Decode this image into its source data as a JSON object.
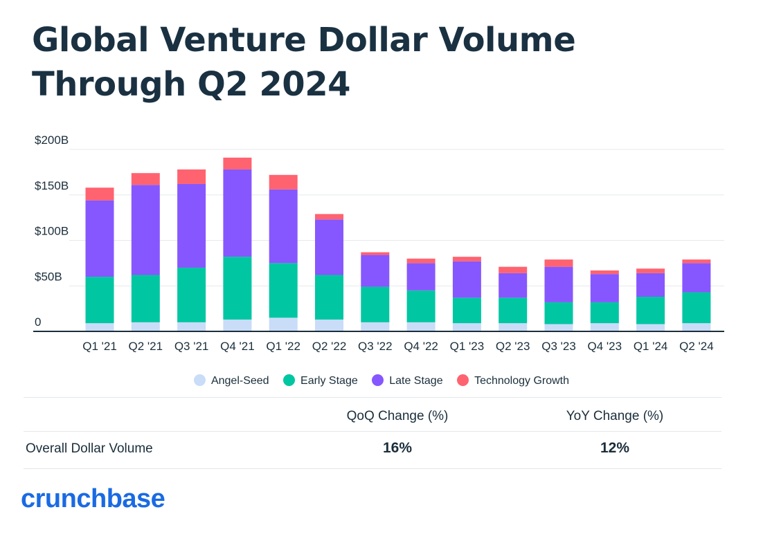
{
  "title": "Global Venture Dollar Volume Through Q2 2024",
  "colors": {
    "angel_seed": "#c9dcf8",
    "early_stage": "#00c6a2",
    "late_stage": "#8657ff",
    "technology_growth": "#ff6370",
    "brand": "#1a6ae3"
  },
  "chart_data": {
    "type": "bar",
    "stacked": true,
    "categories": [
      "Q1 '21",
      "Q2 '21",
      "Q3 '21",
      "Q4 '21",
      "Q1 '22",
      "Q2 '22",
      "Q3 '22",
      "Q4 '22",
      "Q1 '23",
      "Q2 '23",
      "Q3 '23",
      "Q4 '23",
      "Q1 '24",
      "Q2 '24"
    ],
    "series": [
      {
        "name": "Angel-Seed",
        "color": "#c9dcf8",
        "values": [
          9,
          10,
          10,
          13,
          15,
          13,
          10,
          10,
          9,
          9,
          8,
          9,
          8,
          9
        ]
      },
      {
        "name": "Early Stage",
        "color": "#00c6a2",
        "values": [
          51,
          52,
          60,
          69,
          60,
          49,
          39,
          35,
          28,
          28,
          24,
          23,
          30,
          34
        ]
      },
      {
        "name": "Late Stage",
        "color": "#8657ff",
        "values": [
          84,
          99,
          92,
          96,
          81,
          61,
          35,
          30,
          40,
          27,
          39,
          31,
          26,
          32
        ]
      },
      {
        "name": "Technology Growth",
        "color": "#ff6370",
        "values": [
          14,
          13,
          16,
          13,
          16,
          6,
          3,
          5,
          5,
          7,
          8,
          4,
          5,
          4
        ]
      }
    ],
    "yticks": [
      "0",
      "$50B",
      "$100B",
      "$150B",
      "$200B"
    ],
    "ylim": [
      0,
      200
    ],
    "grid": true,
    "legend_position": "bottom"
  },
  "legend": {
    "items": [
      "Angel-Seed",
      "Early Stage",
      "Late Stage",
      "Technology Growth"
    ]
  },
  "stats": {
    "qoq_header": "QoQ Change (%)",
    "yoy_header": "YoY Change (%)",
    "row_label": "Overall Dollar Volume",
    "qoq_value": "16%",
    "yoy_value": "12%"
  },
  "brand": "crunchbase"
}
